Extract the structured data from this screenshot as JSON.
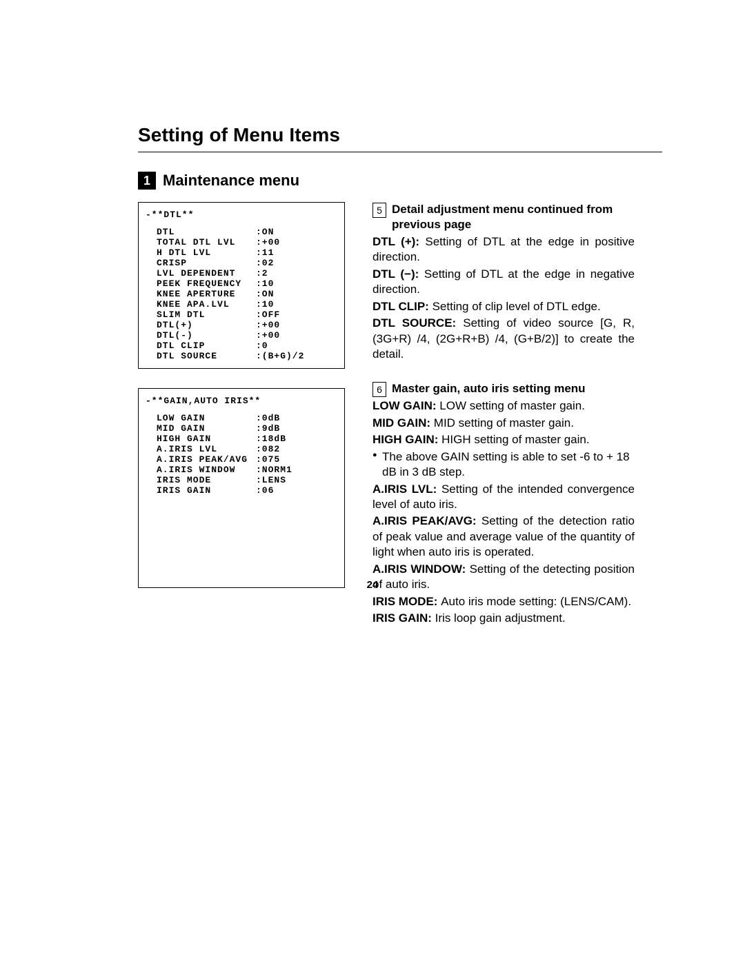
{
  "page_number": "24",
  "page_title": "Setting of Menu Items",
  "section": {
    "number": "1",
    "title": "Maintenance menu"
  },
  "boxes": {
    "dtl": {
      "header": "-**DTL**",
      "rows": [
        {
          "label": "DTL",
          "value": ":ON"
        },
        {
          "label": "TOTAL DTL LVL",
          "value": ":+00"
        },
        {
          "label": "H DTL LVL",
          "value": ":11"
        },
        {
          "label": "CRISP",
          "value": ":02"
        },
        {
          "label": "LVL DEPENDENT",
          "value": ":2"
        },
        {
          "label": "PEEK FREQUENCY",
          "value": ":10"
        },
        {
          "label": "KNEE APERTURE",
          "value": ":ON"
        },
        {
          "label": "KNEE APA.LVL",
          "value": ":10"
        },
        {
          "label": "SLIM DTL",
          "value": ":OFF"
        },
        {
          "label": "DTL(+)",
          "value": ":+00"
        },
        {
          "label": "DTL(-)",
          "value": ":+00"
        },
        {
          "label": "DTL CLIP",
          "value": ":0"
        },
        {
          "label": "DTL SOURCE",
          "value": ":(B+G)/2"
        }
      ]
    },
    "gain": {
      "header": "-**GAIN,AUTO IRIS**",
      "rows": [
        {
          "label": "LOW GAIN",
          "value": ":0dB"
        },
        {
          "label": "MID GAIN",
          "value": ":9dB"
        },
        {
          "label": "HIGH GAIN",
          "value": ":18dB"
        },
        {
          "label": "A.IRIS LVL",
          "value": ":082"
        },
        {
          "label": "A.IRIS PEAK/AVG",
          "value": ":075"
        },
        {
          "label": "A.IRIS WINDOW",
          "value": ":NORM1"
        },
        {
          "label": "IRIS MODE",
          "value": ":LENS"
        },
        {
          "label": "IRIS GAIN",
          "value": ":06"
        }
      ]
    }
  },
  "right": {
    "block5": {
      "num": "5",
      "heading": "Detail adjustment menu continued from previous page",
      "items": [
        {
          "term": "DTL (+): ",
          "desc": "Setting of DTL at the edge in positive direction."
        },
        {
          "term": "DTL (−): ",
          "desc": "Setting of DTL at the edge in negative direction."
        },
        {
          "term": "DTL CLIP: ",
          "desc": "Setting of clip level of DTL edge."
        },
        {
          "term": "DTL SOURCE: ",
          "desc": "Setting of video source [G, R, (3G+R) /4, (2G+R+B) /4, (G+B/2)] to create the detail."
        }
      ]
    },
    "block6": {
      "num": "6",
      "heading": "Master gain, auto iris setting menu",
      "items_top": [
        {
          "term": "LOW GAIN: ",
          "desc": "LOW setting of master gain."
        },
        {
          "term": "MID GAIN: ",
          "desc": "MID setting of master gain."
        },
        {
          "term": "HIGH GAIN: ",
          "desc": "HIGH setting of master gain."
        }
      ],
      "bullet": "The above GAIN setting is able to set -6 to + 18 dB in 3 dB step.",
      "items_bottom": [
        {
          "term": "A.IRIS LVL: ",
          "desc": "Setting of the intended convergence level of auto iris."
        },
        {
          "term": "A.IRIS PEAK/AVG: ",
          "desc": "Setting of the detection ratio of peak value and average value of the quantity of light when auto iris is operated."
        },
        {
          "term": "A.IRIS WINDOW: ",
          "desc": "Setting of the detecting position of auto iris."
        },
        {
          "term": "IRIS MODE: ",
          "desc": "Auto iris mode setting: (LENS/CAM)."
        },
        {
          "term": "IRIS GAIN: ",
          "desc": "Iris  loop gain adjustment."
        }
      ]
    }
  }
}
